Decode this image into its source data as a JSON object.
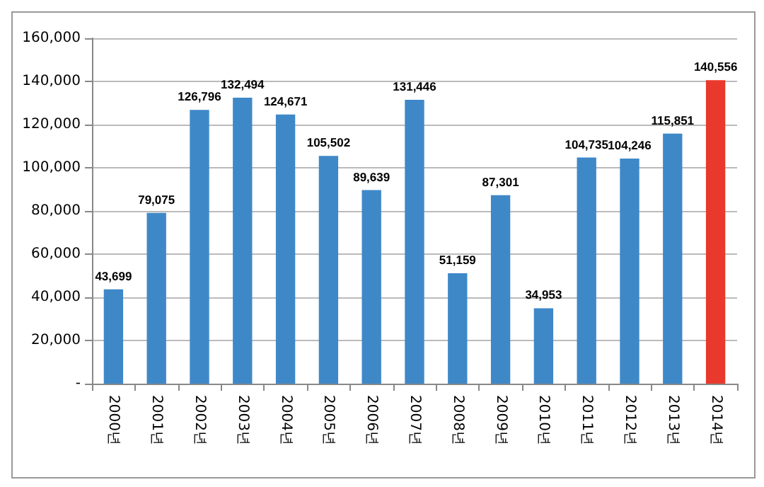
{
  "chart_data": {
    "type": "bar",
    "categories": [
      "2000년",
      "2001년",
      "2002년",
      "2003년",
      "2004년",
      "2005년",
      "2006년",
      "2007년",
      "2008년",
      "2009년",
      "2010년",
      "2011년",
      "2012년",
      "2013년",
      "2014년"
    ],
    "values": [
      43699,
      79075,
      126796,
      132494,
      124671,
      105502,
      89639,
      131446,
      51159,
      87301,
      34953,
      104735,
      104246,
      115851,
      140556
    ],
    "colors": [
      "#3f88c8",
      "#3f88c8",
      "#3f88c8",
      "#3f88c8",
      "#3f88c8",
      "#3f88c8",
      "#3f88c8",
      "#3f88c8",
      "#3f88c8",
      "#3f88c8",
      "#3f88c8",
      "#3f88c8",
      "#3f88c8",
      "#3f88c8",
      "#e8392c"
    ],
    "value_labels": [
      "43,699",
      "79,075",
      "126,796",
      "132,494",
      "124,671",
      "105,502",
      "89,639",
      "131,446",
      "51,159",
      "87,301",
      "34,953",
      "104,735",
      "104,246",
      "115,851",
      "140,556"
    ],
    "ylim": [
      0,
      160000
    ],
    "yticks": [
      {
        "value": 0,
        "label": "-"
      },
      {
        "value": 20000,
        "label": "20,000"
      },
      {
        "value": 40000,
        "label": "40,000"
      },
      {
        "value": 60000,
        "label": "60,000"
      },
      {
        "value": 80000,
        "label": "80,000"
      },
      {
        "value": 100000,
        "label": "100,000"
      },
      {
        "value": 120000,
        "label": "120,000"
      },
      {
        "value": 140000,
        "label": "140,000"
      },
      {
        "value": 160000,
        "label": "160,000"
      }
    ],
    "grid": "y"
  }
}
